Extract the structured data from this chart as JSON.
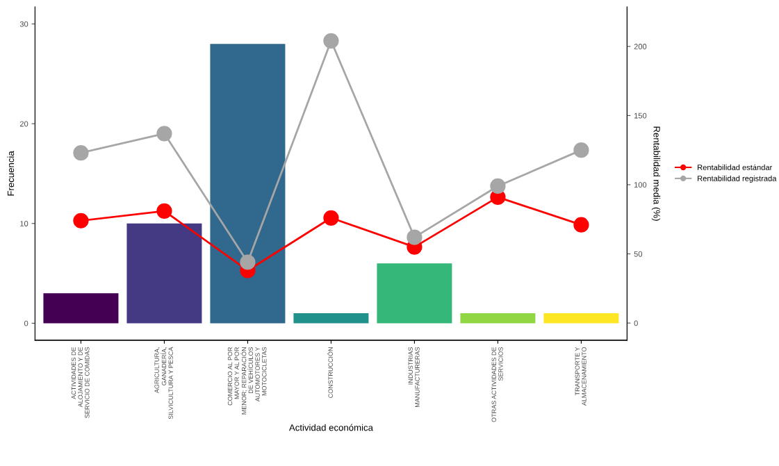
{
  "chart_data": {
    "type": "bar",
    "xlabel": "Actividad económica",
    "ylabel": "Frecuencia",
    "y2label": "Rentabilidad media (%)",
    "categories": [
      "ACTIVIDADES DE\nALOJAMIENTO Y DE\nSERVICIO DE COMIDAS",
      "AGRICULTURA,\nGANADERÍA,\nSILVICULTURA Y PESCA",
      "COMERCIO AL POR\nMAYOR Y AL POR\nMENOR; REPARACIÓN\nDE VEHÍCULOS\nAUTOMOTORES Y\nMOTOCICLETAS",
      "CONSTRUCCIÓN",
      "INDUSTRIAS\nMANUFACTURERAS",
      "OTRAS ACTIVIDADES DE\nSERVICIOS",
      "TRANSPORTE Y\nALMACENAMIENTO"
    ],
    "series": [
      {
        "colors": [
          "#440154",
          "#443983",
          "#31688e",
          "#21918c",
          "#35b779",
          "#90d743",
          "#fde725"
        ],
        "values": [
          3,
          10,
          28,
          1,
          6,
          1,
          1
        ]
      },
      {
        "type": "line",
        "axis": "y2",
        "name": "Rentabilidad estándar",
        "color": "#ff0000",
        "values": [
          74,
          81,
          38,
          76,
          55,
          91,
          71
        ]
      },
      {
        "type": "line",
        "axis": "y2",
        "name": "Rentabilidad registrada",
        "color": "#a6a6a6",
        "values": [
          123,
          137,
          44,
          204,
          62,
          99,
          125
        ]
      }
    ],
    "ylim": [
      -1.7,
      31.7
    ],
    "yticks": [
      0,
      10,
      20,
      30
    ],
    "y2lim": [
      -12.4,
      228.5
    ],
    "y2ticks": [
      0,
      50,
      100,
      150,
      200
    ],
    "marker": "circle",
    "line_style": "solid",
    "legend": "right",
    "grid": false
  }
}
